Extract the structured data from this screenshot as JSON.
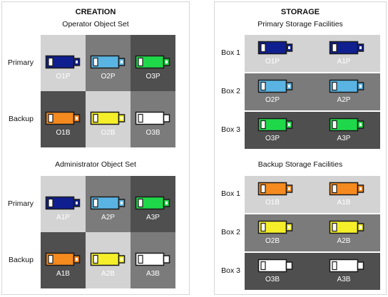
{
  "creation": {
    "title": "CREATION",
    "operator": {
      "title": "Operator Object Set",
      "row_labels": [
        "Primary",
        "Backup"
      ],
      "tiles": [
        [
          {
            "label": "O1P",
            "usb_color": "#0f1f8f",
            "bg": "#d3d3d3",
            "text_color": "#ffffff"
          },
          {
            "label": "O2P",
            "usb_color": "#5ab4e3",
            "bg": "#7b7b7b",
            "text_color": "#ffffff"
          },
          {
            "label": "O3P",
            "usb_color": "#1fd84a",
            "bg": "#4f4f4f",
            "text_color": "#ffffff"
          }
        ],
        [
          {
            "label": "O1B",
            "usb_color": "#f58a1f",
            "bg": "#4f4f4f",
            "text_color": "#ffffff"
          },
          {
            "label": "O2B",
            "usb_color": "#f5ef2a",
            "bg": "#d3d3d3",
            "text_color": "#ffffff"
          },
          {
            "label": "O3B",
            "usb_color": "#ffffff",
            "bg": "#7b7b7b",
            "text_color": "#ffffff"
          }
        ]
      ]
    },
    "administrator": {
      "title": "Administrator Object Set",
      "row_labels": [
        "Primary",
        "Backup"
      ],
      "tiles": [
        [
          {
            "label": "A1P",
            "usb_color": "#0f1f8f",
            "bg": "#d3d3d3",
            "text_color": "#ffffff"
          },
          {
            "label": "A2P",
            "usb_color": "#5ab4e3",
            "bg": "#7b7b7b",
            "text_color": "#ffffff"
          },
          {
            "label": "A3P",
            "usb_color": "#1fd84a",
            "bg": "#4f4f4f",
            "text_color": "#ffffff"
          }
        ],
        [
          {
            "label": "A1B",
            "usb_color": "#f58a1f",
            "bg": "#4f4f4f",
            "text_color": "#ffffff"
          },
          {
            "label": "A2B",
            "usb_color": "#f5ef2a",
            "bg": "#d3d3d3",
            "text_color": "#ffffff"
          },
          {
            "label": "A3B",
            "usb_color": "#ffffff",
            "bg": "#7b7b7b",
            "text_color": "#ffffff"
          }
        ]
      ]
    }
  },
  "storage": {
    "title": "STORAGE",
    "primary": {
      "title": "Primary Storage Facilities",
      "boxes": [
        {
          "label": "Box 1",
          "bg": "#d3d3d3",
          "items": [
            {
              "label": "O1P",
              "usb_color": "#0f1f8f"
            },
            {
              "label": "A1P",
              "usb_color": "#0f1f8f"
            }
          ]
        },
        {
          "label": "Box 2",
          "bg": "#7b7b7b",
          "items": [
            {
              "label": "O2P",
              "usb_color": "#5ab4e3"
            },
            {
              "label": "A2P",
              "usb_color": "#5ab4e3"
            }
          ]
        },
        {
          "label": "Box 3",
          "bg": "#4f4f4f",
          "items": [
            {
              "label": "O3P",
              "usb_color": "#1fd84a"
            },
            {
              "label": "A3P",
              "usb_color": "#1fd84a"
            }
          ]
        }
      ]
    },
    "backup": {
      "title": "Backup Storage Facilities",
      "boxes": [
        {
          "label": "Box 1",
          "bg": "#d3d3d3",
          "items": [
            {
              "label": "O1B",
              "usb_color": "#f58a1f"
            },
            {
              "label": "A1B",
              "usb_color": "#f58a1f"
            }
          ]
        },
        {
          "label": "Box 2",
          "bg": "#7b7b7b",
          "items": [
            {
              "label": "O2B",
              "usb_color": "#f5ef2a"
            },
            {
              "label": "A2B",
              "usb_color": "#f5ef2a"
            }
          ]
        },
        {
          "label": "Box 3",
          "bg": "#4f4f4f",
          "items": [
            {
              "label": "O3B",
              "usb_color": "#ffffff"
            },
            {
              "label": "A3B",
              "usb_color": "#ffffff"
            }
          ]
        }
      ]
    }
  }
}
